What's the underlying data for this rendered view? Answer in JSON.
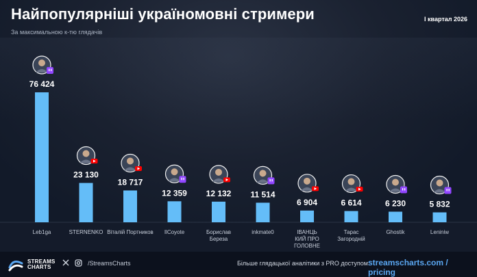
{
  "header": {
    "title": "Найпопулярніші україномовні стримери",
    "subtitle": "За максимальною к-тю глядачів",
    "period": "I квартал 2026"
  },
  "chart_data": {
    "type": "bar",
    "title": "Найпопулярніші україномовні стримери",
    "subtitle": "За максимальною к-тю глядачів",
    "categories": [
      "Leb1ga",
      "STERNENKO",
      "Віталій Портников",
      "IlCoyote",
      "Борислав Береза",
      "inkmate0",
      "ІВАНЦЬ КИЙ ПРО ГОЛОВНЕ",
      "Тарас Загородній",
      "Ghostik",
      "Leniniw"
    ],
    "category_lines": [
      [
        "Leb1ga"
      ],
      [
        "STERNENKO"
      ],
      [
        "Віталій Портников"
      ],
      [
        "IlCoyote"
      ],
      [
        "Борислав",
        "Береза"
      ],
      [
        "inkmate0"
      ],
      [
        "ІВАНЦЬ",
        "КИЙ ПРО",
        "ГОЛОВНЕ"
      ],
      [
        "Тарас",
        "Загородній"
      ],
      [
        "Ghostik"
      ],
      [
        "Leniniw"
      ]
    ],
    "values": [
      76424,
      23130,
      18717,
      12359,
      12132,
      11514,
      6904,
      6614,
      6230,
      5832
    ],
    "value_labels": [
      "76 424",
      "23 130",
      "18 717",
      "12 359",
      "12 132",
      "11 514",
      "6 904",
      "6 614",
      "6 230",
      "5 832"
    ],
    "platforms": [
      "twitch",
      "youtube",
      "youtube",
      "twitch",
      "youtube",
      "twitch",
      "youtube",
      "youtube",
      "twitch",
      "twitch"
    ],
    "ylim": [
      0,
      76424
    ],
    "grid": false,
    "bar_color": "#64bdf8"
  },
  "colors": {
    "background": "#0f1626",
    "bar": "#64bdf8",
    "twitch": "#9146ff",
    "youtube": "#ff0000",
    "accent_link": "#5aa7f2"
  },
  "footer": {
    "logo_line1": "STREAMS",
    "logo_line2": "CHARTS",
    "x_icon": "x-icon",
    "instagram_icon": "instagram-icon",
    "handle": "/StreamsCharts",
    "promo": "Більше глядацької аналітики з PRO доступом:",
    "link": "streamscharts.com / pricing"
  }
}
